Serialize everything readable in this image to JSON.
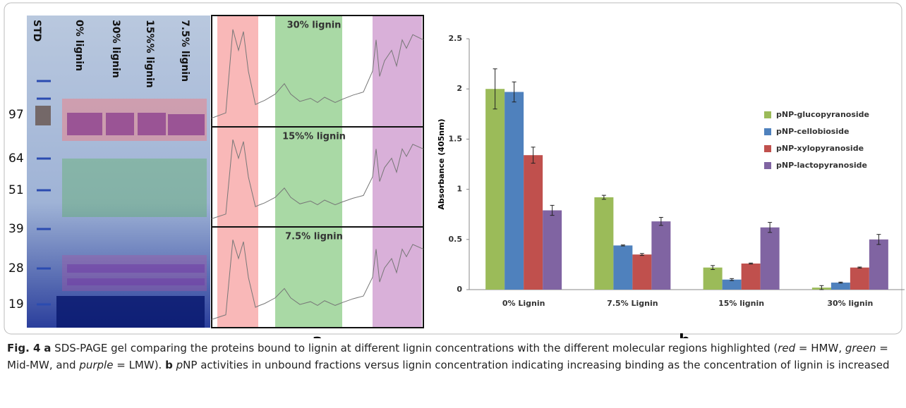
{
  "figure": {
    "gel": {
      "lanes": [
        "STD",
        "0% lignin",
        "30% lignin",
        "15%% lignin",
        "7.5% lignin"
      ],
      "markers": [
        "97",
        "64",
        "51",
        "39",
        "28",
        "19"
      ]
    },
    "traces": [
      "30% lignin",
      "15%% lignin",
      "7.5% lignin"
    ],
    "panel_a": "a",
    "caption": [
      "Fig. 4",
      "a",
      "SDS-PAGE gel comparing the proteins bound to lignin at different lignin concentrations with the different molecular regions highlighted (",
      "red",
      " = HMW, ",
      "green",
      " = Mid-MW, and ",
      "purple",
      " = LMW).",
      "b",
      "p",
      "NP activities in unbound fractions versus lignin concentration indicating increasing binding as the concentration of lignin is increased"
    ]
  },
  "chart_data": {
    "type": "bar",
    "panel_label": "b",
    "y_label": "Absorbance (405nm)",
    "categories": [
      "0% Lignin",
      "7.5% Lignin",
      "15% lignin",
      "30% lignin"
    ],
    "series": [
      {
        "name": "pNP-glucopyranoside",
        "color": "#9bbb59",
        "values": [
          2.0,
          0.92,
          0.22,
          0.02
        ],
        "errors": [
          0.2,
          0.02,
          0.02,
          0.02
        ]
      },
      {
        "name": "pNP-cellobioside",
        "color": "#4f81bd",
        "values": [
          1.97,
          0.44,
          0.1,
          0.07
        ],
        "errors": [
          0.1,
          0.005,
          0.01,
          0.005
        ]
      },
      {
        "name": "pNP-xylopyranoside",
        "color": "#c0504d",
        "values": [
          1.34,
          0.35,
          0.26,
          0.22
        ],
        "errors": [
          0.08,
          0.01,
          0.005,
          0.005
        ]
      },
      {
        "name": "pNP-lactopyranoside",
        "color": "#8064a2",
        "values": [
          0.79,
          0.68,
          0.62,
          0.5
        ],
        "errors": [
          0.05,
          0.04,
          0.05,
          0.05
        ]
      }
    ],
    "ylim": [
      0,
      2.5
    ],
    "yticks": [
      0,
      0.5,
      1,
      {
        "value": 1.5,
        "label": "1.5"
      },
      2,
      {
        "value": 2.5,
        "label": "2.5"
      }
    ],
    "grid": false
  }
}
